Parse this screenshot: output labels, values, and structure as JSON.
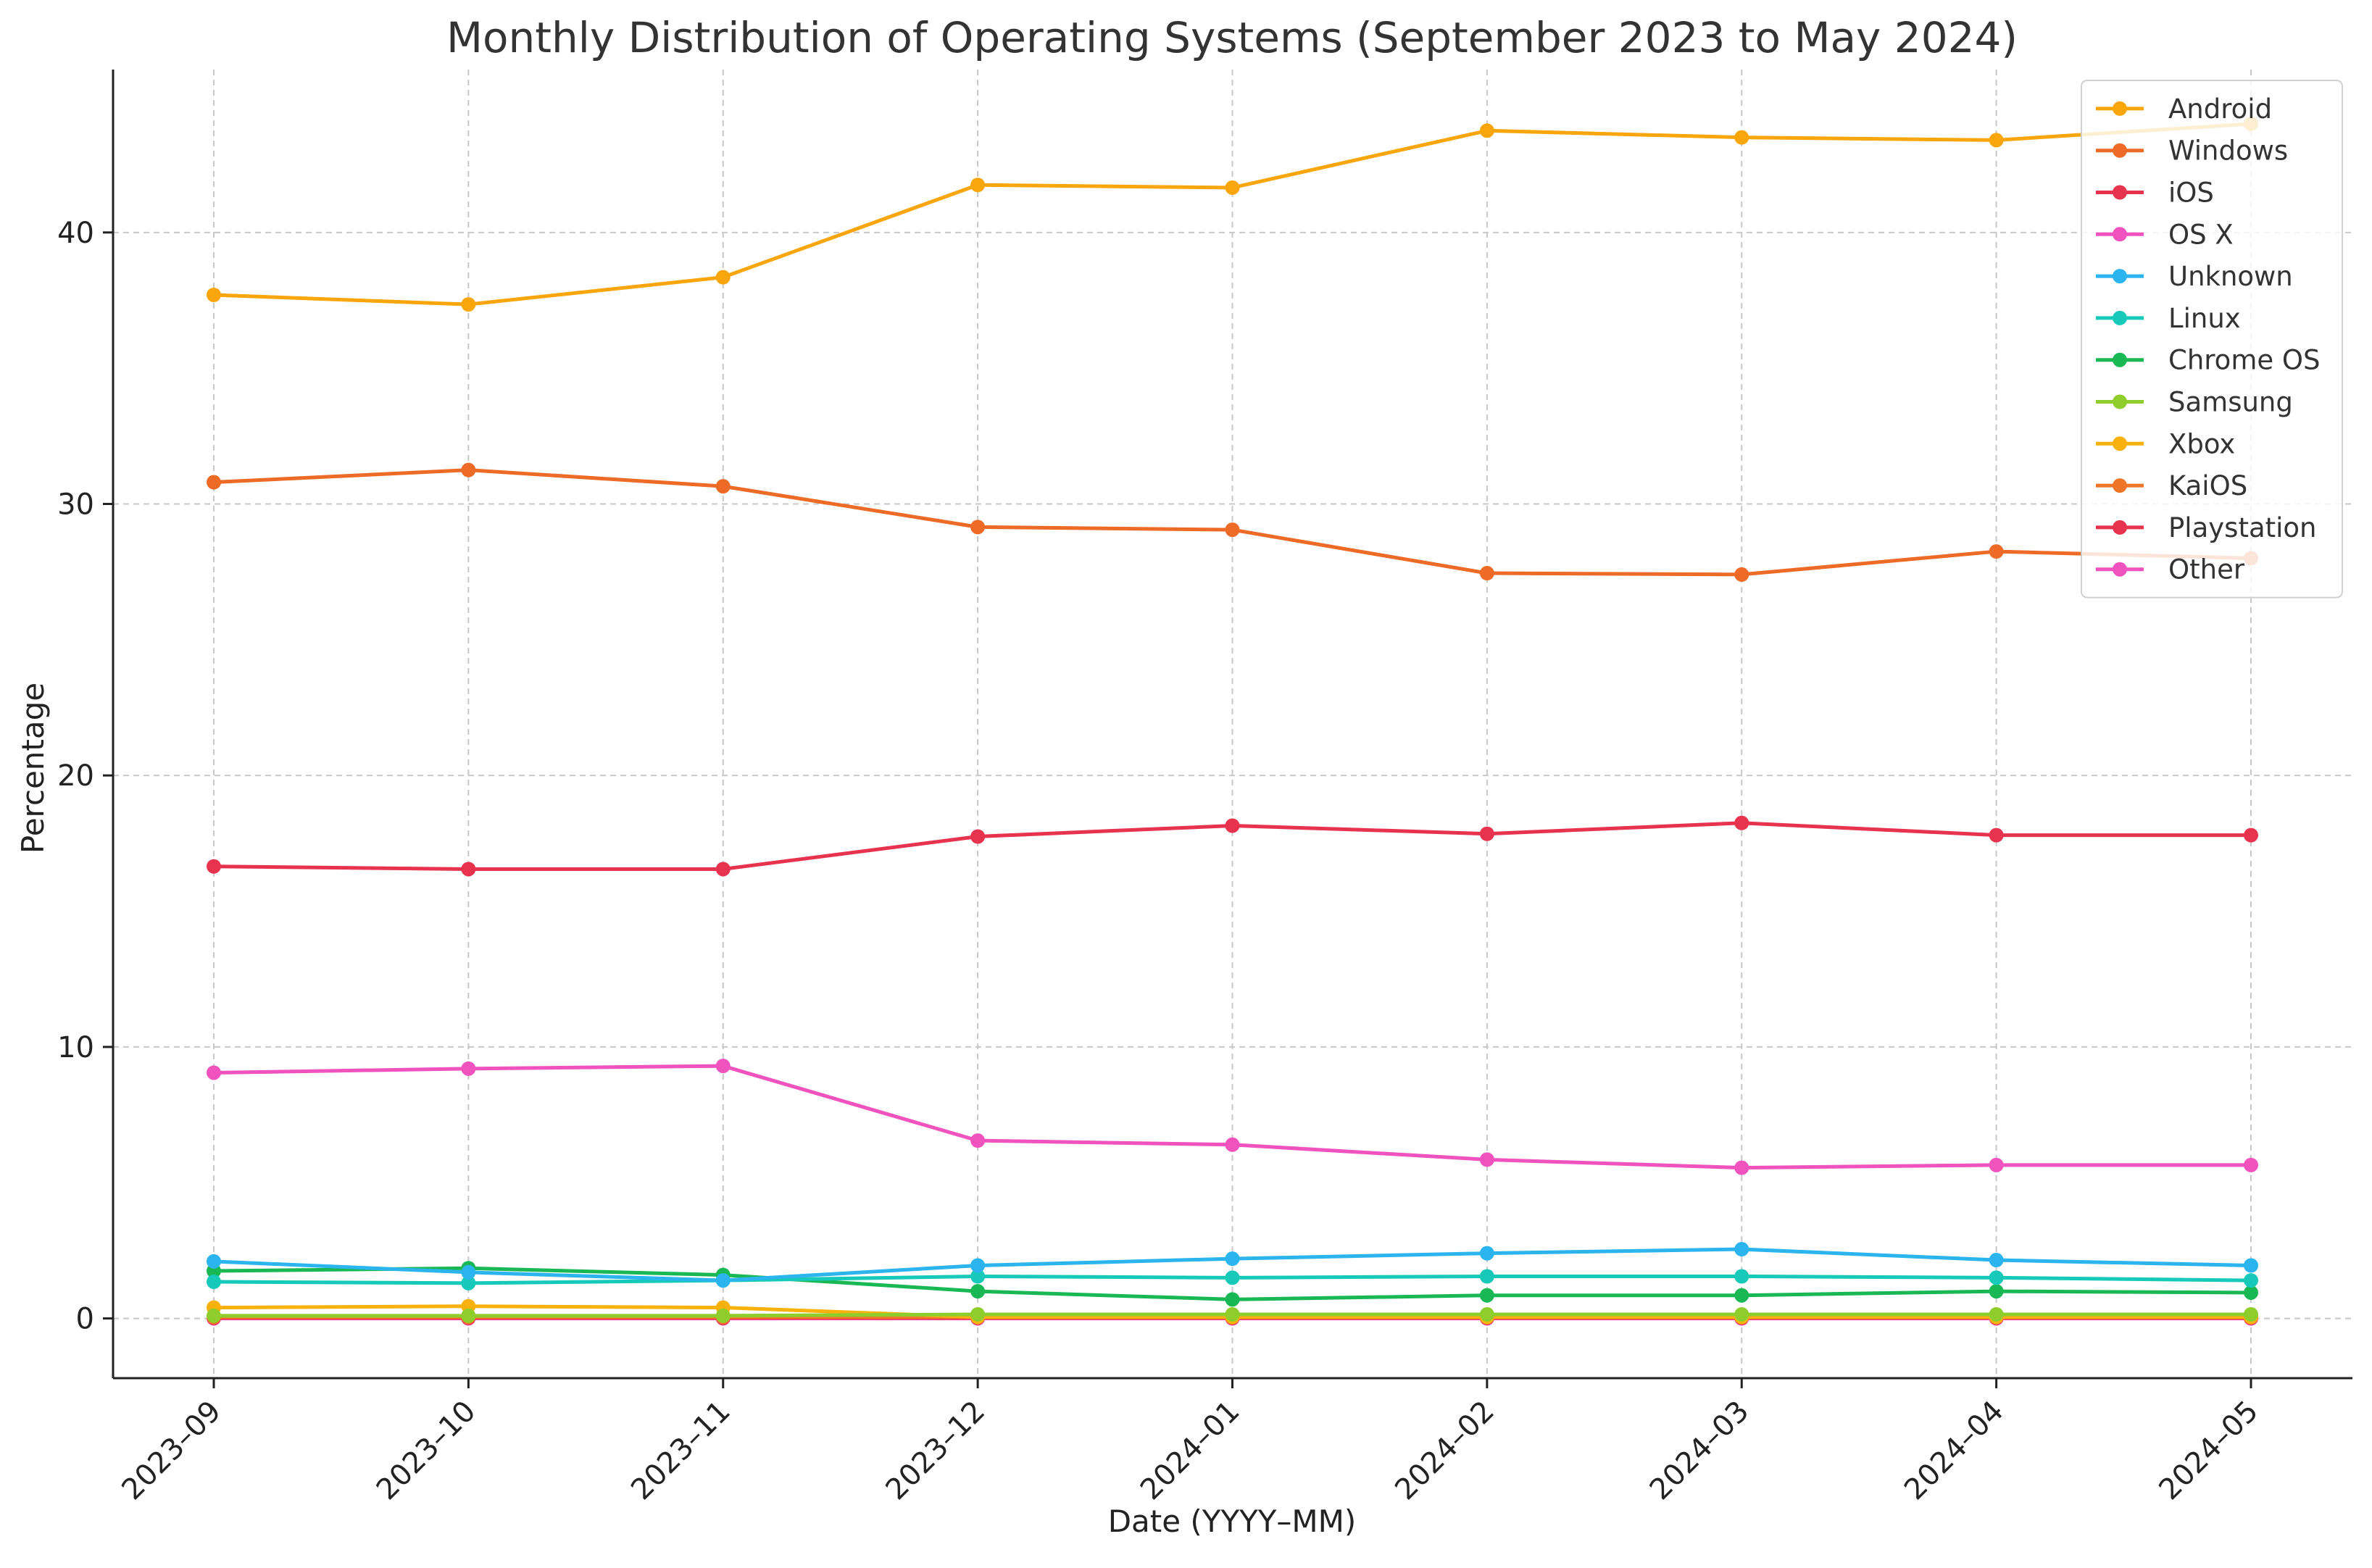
{
  "chart_data": {
    "type": "line",
    "title": "Monthly Distribution of Operating Systems (September 2023 to May 2024)",
    "xlabel": "Date (YYYY–MM)",
    "ylabel": "Percentage",
    "categories": [
      "2023–09",
      "2023–10",
      "2023–11",
      "2023–12",
      "2024–01",
      "2024–02",
      "2024–03",
      "2024–04",
      "2024–05"
    ],
    "ylim": [
      -2.2,
      46
    ],
    "yticks": [
      0,
      10,
      20,
      30,
      40
    ],
    "grid": true,
    "legend_position": "top-right",
    "series": [
      {
        "name": "Android",
        "color": "#f9a60d",
        "values": [
          37.7,
          37.35,
          38.35,
          41.75,
          41.65,
          43.75,
          43.5,
          43.4,
          44.0
        ]
      },
      {
        "name": "Windows",
        "color": "#ed6a27",
        "values": [
          30.8,
          31.25,
          30.65,
          29.15,
          29.05,
          27.45,
          27.4,
          28.25,
          28.0
        ]
      },
      {
        "name": "iOS",
        "color": "#e8334f",
        "values": [
          16.65,
          16.55,
          16.55,
          17.75,
          18.15,
          17.85,
          18.25,
          17.8,
          17.8
        ]
      },
      {
        "name": "OS X",
        "color": "#f052be",
        "values": [
          9.05,
          9.2,
          9.3,
          6.55,
          6.4,
          5.85,
          5.55,
          5.65,
          5.65
        ]
      },
      {
        "name": "Unknown",
        "color": "#2bb4ee",
        "values": [
          2.1,
          1.7,
          1.4,
          1.95,
          2.2,
          2.4,
          2.55,
          2.15,
          1.95
        ]
      },
      {
        "name": "Linux",
        "color": "#17c9b8",
        "values": [
          1.35,
          1.3,
          1.4,
          1.55,
          1.5,
          1.55,
          1.55,
          1.5,
          1.4
        ]
      },
      {
        "name": "Chrome OS",
        "color": "#19b855",
        "values": [
          1.75,
          1.85,
          1.6,
          1.0,
          0.7,
          0.85,
          0.85,
          1.0,
          0.95
        ]
      },
      {
        "name": "Samsung",
        "color": "#8fcd2c",
        "values": [
          0.1,
          0.1,
          0.1,
          0.15,
          0.15,
          0.15,
          0.15,
          0.15,
          0.15
        ]
      },
      {
        "name": "Xbox",
        "color": "#f9b20d",
        "values": [
          0.4,
          0.45,
          0.4,
          0.05,
          0.05,
          0.05,
          0.05,
          0.05,
          0.05
        ]
      },
      {
        "name": "KaiOS",
        "color": "#ef7628",
        "values": [
          0.05,
          0.05,
          0.05,
          0.05,
          0.05,
          0.05,
          0.05,
          0.05,
          0.05
        ]
      },
      {
        "name": "Playstation",
        "color": "#e8334f",
        "values": [
          0.02,
          0.02,
          0.02,
          0.02,
          0.02,
          0.02,
          0.02,
          0.02,
          0.02
        ]
      },
      {
        "name": "Other",
        "color": "#f052be",
        "values": [
          0.0,
          0.0,
          0.0,
          0.0,
          0.0,
          0.0,
          0.0,
          0.0,
          0.0
        ]
      }
    ]
  }
}
